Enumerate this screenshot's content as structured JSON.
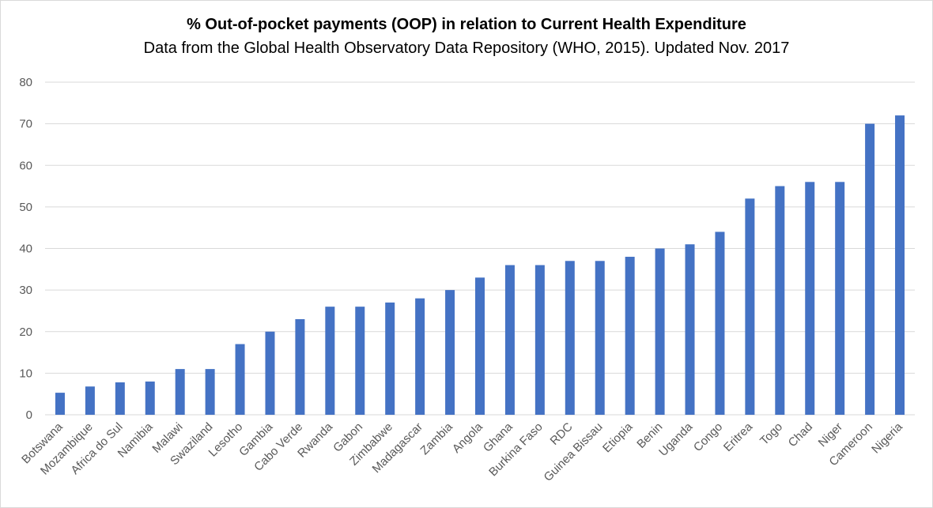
{
  "chart_data": {
    "type": "bar",
    "title": "% Out-of-pocket payments (OOP) in relation to Current Health Expenditure",
    "subtitle": "Data from the Global Health Observatory Data Repository (WHO, 2015). Updated Nov. 2017",
    "xlabel": "",
    "ylabel": "",
    "ylim": [
      0,
      80
    ],
    "yticks": [
      0,
      10,
      20,
      30,
      40,
      50,
      60,
      70,
      80
    ],
    "grid": true,
    "bar_color": "#4472C4",
    "categories": [
      "Botswana",
      "Mozambique",
      "Africa do Sul",
      "Namibia",
      "Malawi",
      "Swaziland",
      "Lesotho",
      "Gambia",
      "Cabo Verde",
      "Rwanda",
      "Gabon",
      "Zimbabwe",
      "Madagascar",
      "Zambia",
      "Angola",
      "Ghana",
      "Burkina Faso",
      "RDC",
      "Guinea Bissau",
      "Etiopia",
      "Benin",
      "Uganda",
      "Congo",
      "Eritrea",
      "Togo",
      "Chad",
      "Niger",
      "Cameroon",
      "Nigeria"
    ],
    "values": [
      5.3,
      6.8,
      7.8,
      8,
      11,
      11,
      17,
      20,
      23,
      26,
      26,
      27,
      28,
      30,
      33,
      36,
      36,
      37,
      37,
      38,
      40,
      41,
      44,
      52,
      55,
      56,
      56,
      70,
      72
    ]
  }
}
